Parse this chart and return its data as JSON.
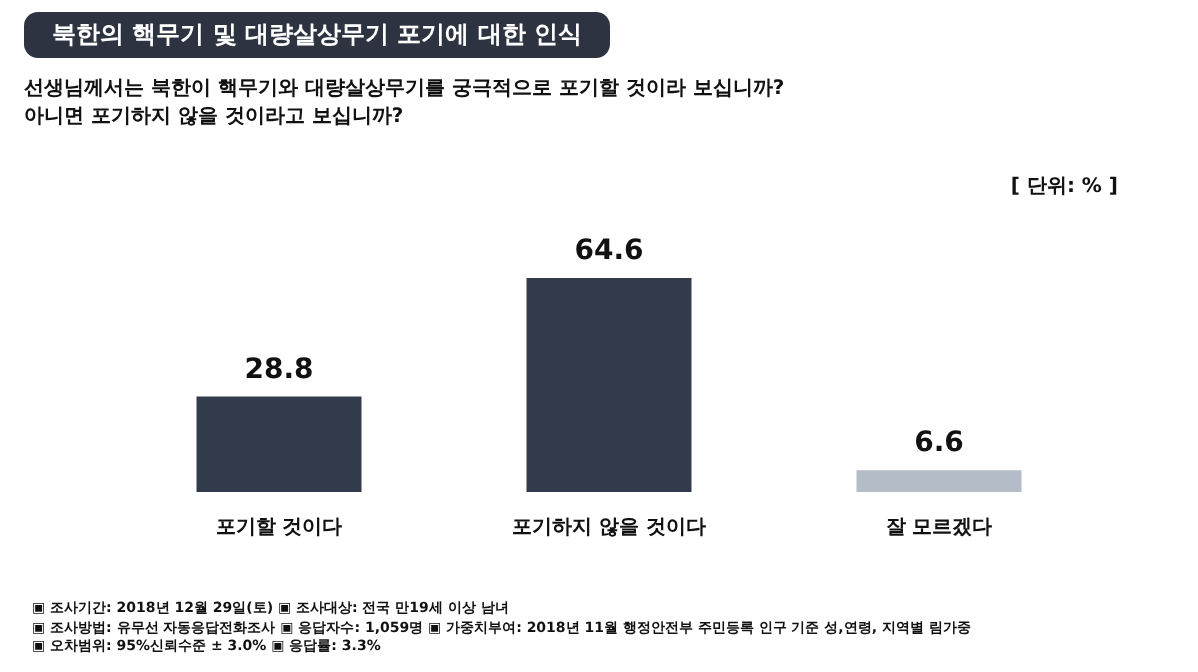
{
  "chart_data": {
    "type": "bar",
    "title": "북한의 핵무기 및 대량살상무기 포기에 대한 인식",
    "subtitle": "선생님께서는 북한이 핵무기와 대량살상무기를 궁극적으로 포기할 것이라 보십니까?\n아니면 포기하지 않을 것이라고 보십니까?",
    "categories": [
      "포기할 것이다",
      "포기하지 않을 것이다",
      "잘 모르겠다"
    ],
    "values": [
      28.8,
      64.6,
      6.6
    ],
    "colors": [
      "#323b4c",
      "#323b4c",
      "#b4bcc8"
    ],
    "data_labels": true,
    "grid": false,
    "legend": false,
    "annotations": [
      "[ 단위: % ]",
      "▣ 조사기간: 2018년 12월 29일(토) ▣ 조사대상: 전국 만19세 이상 남녀",
      "▣ 조사방법: 유무선 자동응답전화조사 ▣ 응답자수: 1,059명 ▣ 가중치부여: 2018년 11월 행정안전부 주민등록 인구 기준 성,연령, 지역별 림가중",
      "▣ 오차범위: 95%신뢰수준 ± 3.0% ▣ 응답률: 3.3%"
    ]
  }
}
